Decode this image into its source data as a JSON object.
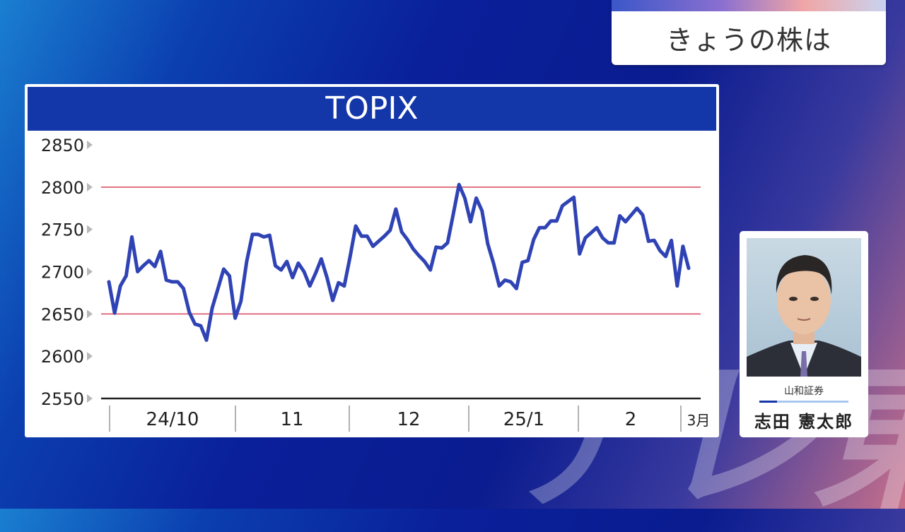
{
  "header": {
    "title": "きょうの株は"
  },
  "watermark": {
    "text": "テレ東"
  },
  "chart_data": {
    "type": "line",
    "title": "TOPIX",
    "xlabel": "",
    "ylabel": "",
    "ylim": [
      2550,
      2850
    ],
    "yticks": [
      2850,
      2800,
      2750,
      2700,
      2650,
      2600,
      2550
    ],
    "reference_lines": [
      2800,
      2650
    ],
    "x_tick_labels": [
      "24/10",
      "11",
      "12",
      "25/1",
      "2",
      "3月"
    ],
    "series": [
      {
        "name": "",
        "color": "#2f43b5",
        "values": [
          2688,
          2651,
          2683,
          2695,
          2741,
          2700,
          2707,
          2713,
          2706,
          2724,
          2690,
          2688,
          2688,
          2680,
          2652,
          2638,
          2636,
          2619,
          2657,
          2680,
          2703,
          2695,
          2645,
          2665,
          2712,
          2744,
          2744,
          2741,
          2743,
          2707,
          2702,
          2712,
          2693,
          2710,
          2700,
          2683,
          2698,
          2715,
          2693,
          2666,
          2687,
          2683,
          2717,
          2754,
          2742,
          2742,
          2730,
          2736,
          2742,
          2749,
          2774,
          2747,
          2738,
          2727,
          2719,
          2712,
          2702,
          2729,
          2728,
          2734,
          2768,
          2803,
          2787,
          2759,
          2787,
          2772,
          2733,
          2710,
          2683,
          2690,
          2688,
          2680,
          2711,
          2713,
          2738,
          2752,
          2752,
          2760,
          2760,
          2778,
          2783,
          2788,
          2721,
          2740,
          2746,
          2752,
          2740,
          2734,
          2734,
          2766,
          2759,
          2767,
          2775,
          2767,
          2736,
          2737,
          2725,
          2718,
          2737,
          2683,
          2730,
          2704
        ]
      }
    ],
    "colors": {
      "line": "#2f43b5",
      "reference": "#d8475e",
      "header": "#1336a8"
    }
  },
  "profile": {
    "company": "山和証券",
    "name": "志田 憲太郎"
  }
}
